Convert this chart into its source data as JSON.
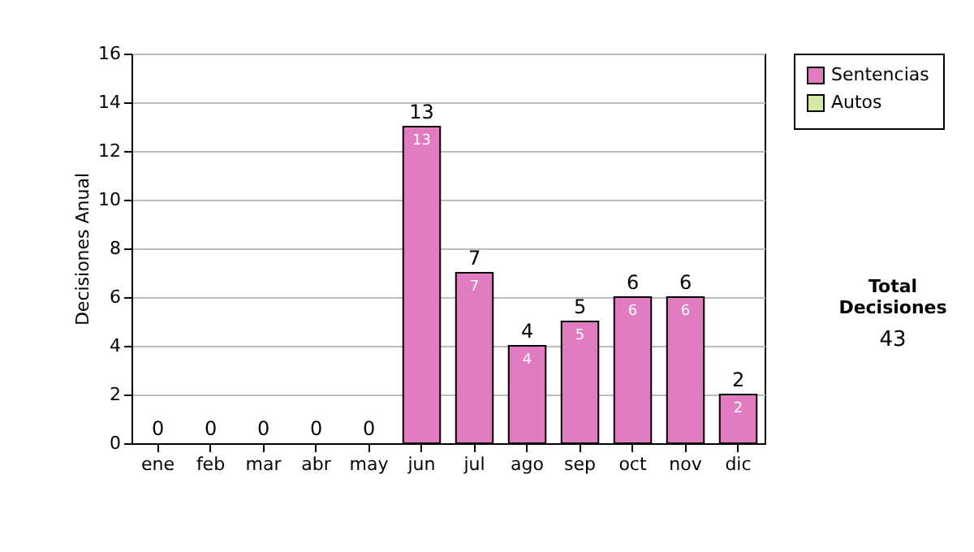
{
  "chart_data": {
    "type": "bar",
    "ylabel": "Decisiones Anual",
    "categories": [
      "ene",
      "feb",
      "mar",
      "abr",
      "may",
      "jun",
      "jul",
      "ago",
      "sep",
      "oct",
      "nov",
      "dic"
    ],
    "series": [
      {
        "name": "Sentencias",
        "color": "#e07cbf",
        "values": [
          0,
          0,
          0,
          0,
          0,
          13,
          7,
          4,
          5,
          6,
          6,
          2
        ],
        "value_labels": [
          null,
          null,
          null,
          null,
          null,
          "13",
          "7",
          "4",
          "5",
          "6",
          "6",
          "2"
        ]
      },
      {
        "name": "Autos",
        "color": "#d6e9a4",
        "values": [
          0,
          0,
          0,
          0,
          0,
          0,
          0,
          0,
          0,
          0,
          0,
          0
        ]
      }
    ],
    "totals": [
      "0",
      "0",
      "0",
      "0",
      "0",
      "13",
      "7",
      "4",
      "5",
      "6",
      "6",
      "2"
    ],
    "ylim": [
      0,
      16
    ],
    "yticks": [
      0,
      2,
      4,
      6,
      8,
      10,
      12,
      14,
      16
    ],
    "grid": "y",
    "legend": "right",
    "annotations": [
      "Total Decisiones",
      "43"
    ]
  }
}
